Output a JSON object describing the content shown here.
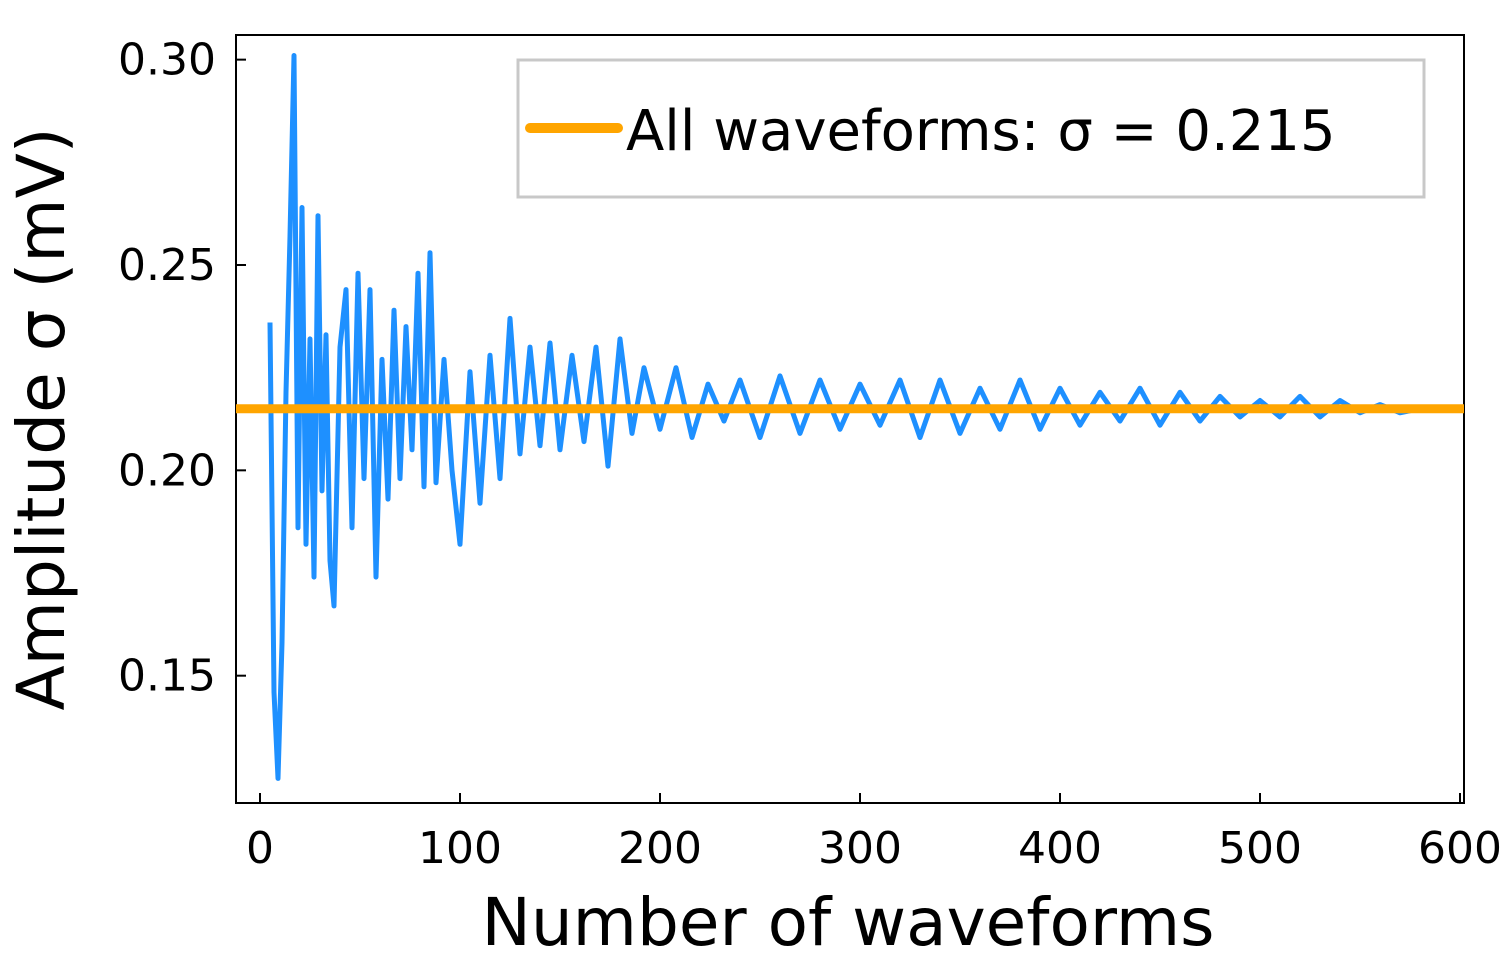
{
  "chart_data": {
    "type": "line",
    "title": "",
    "xlabel": "Number of waveforms",
    "ylabel": "Amplitude σ (mV)",
    "xlim": [
      -12,
      602
    ],
    "ylim": [
      0.119,
      0.306
    ],
    "x_ticks": [
      {
        "value": 0,
        "label": "0"
      },
      {
        "value": 100,
        "label": "100"
      },
      {
        "value": 200,
        "label": "200"
      },
      {
        "value": 300,
        "label": "300"
      },
      {
        "value": 400,
        "label": "400"
      },
      {
        "value": 500,
        "label": "500"
      },
      {
        "value": 600,
        "label": "600"
      }
    ],
    "y_ticks": [
      {
        "value": 0.15,
        "label": "0.15"
      },
      {
        "value": 0.2,
        "label": "0.20"
      },
      {
        "value": 0.25,
        "label": "0.25"
      },
      {
        "value": 0.3,
        "label": "0.30"
      }
    ],
    "grid": false,
    "legend_position": "top-right",
    "series": [
      {
        "color": "#1e90ff",
        "x": [
          5,
          7,
          9,
          11,
          13,
          15,
          17,
          19,
          21,
          23,
          25,
          27,
          29,
          31,
          33,
          35,
          37,
          40,
          43,
          46,
          49,
          52,
          55,
          58,
          61,
          64,
          67,
          70,
          73,
          76,
          79,
          82,
          85,
          88,
          92,
          96,
          100,
          105,
          110,
          115,
          120,
          125,
          130,
          135,
          140,
          145,
          150,
          156,
          162,
          168,
          174,
          180,
          186,
          192,
          200,
          208,
          216,
          224,
          232,
          240,
          250,
          260,
          270,
          280,
          290,
          300,
          310,
          320,
          330,
          340,
          350,
          360,
          370,
          380,
          390,
          400,
          410,
          420,
          430,
          440,
          450,
          460,
          470,
          480,
          490,
          500,
          510,
          520,
          530,
          540,
          550,
          560,
          570,
          580
        ],
        "y": [
          0.236,
          0.146,
          0.125,
          0.158,
          0.219,
          0.257,
          0.301,
          0.186,
          0.264,
          0.182,
          0.232,
          0.174,
          0.262,
          0.195,
          0.233,
          0.178,
          0.167,
          0.23,
          0.244,
          0.186,
          0.248,
          0.198,
          0.244,
          0.174,
          0.227,
          0.193,
          0.239,
          0.198,
          0.235,
          0.205,
          0.248,
          0.196,
          0.253,
          0.197,
          0.227,
          0.2,
          0.182,
          0.224,
          0.192,
          0.228,
          0.198,
          0.237,
          0.204,
          0.23,
          0.206,
          0.231,
          0.205,
          0.228,
          0.207,
          0.23,
          0.201,
          0.232,
          0.209,
          0.225,
          0.21,
          0.225,
          0.208,
          0.221,
          0.212,
          0.222,
          0.208,
          0.223,
          0.209,
          0.222,
          0.21,
          0.221,
          0.211,
          0.222,
          0.208,
          0.222,
          0.209,
          0.22,
          0.21,
          0.222,
          0.21,
          0.22,
          0.211,
          0.219,
          0.212,
          0.22,
          0.211,
          0.219,
          0.212,
          0.218,
          0.213,
          0.217,
          0.213,
          0.218,
          0.213,
          0.217,
          0.214,
          0.216,
          0.214,
          0.215
        ]
      },
      {
        "name": "All waveforms: σ = 0.215",
        "color": "#ffa500",
        "x": [
          -12,
          602
        ],
        "y": [
          0.215,
          0.215
        ]
      }
    ]
  }
}
